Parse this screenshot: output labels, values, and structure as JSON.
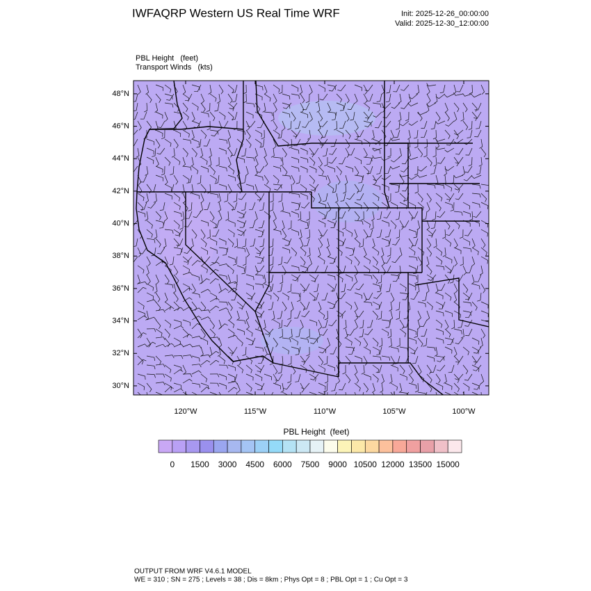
{
  "header": {
    "title": "IWFAQRP Western US Real Time WRF",
    "init": "Init: 2025-12-26_00:00:00",
    "valid": "Valid: 2025-12-30_12:00:00"
  },
  "map": {
    "field_label": "PBL Height   (feet)",
    "wind_label": "Transport Winds   (kts)",
    "xlim": [
      -123.75,
      -98.2
    ],
    "ylim": [
      29.44,
      48.81
    ],
    "xticks": [
      {
        "value": -120,
        "label": "120°W"
      },
      {
        "value": -115,
        "label": "115°W"
      },
      {
        "value": -110,
        "label": "110°W"
      },
      {
        "value": -105,
        "label": "105°W"
      },
      {
        "value": -100,
        "label": "100°W"
      }
    ],
    "yticks": [
      {
        "value": 48,
        "label": "48°N"
      },
      {
        "value": 46,
        "label": "46°N"
      },
      {
        "value": 44,
        "label": "44°N"
      },
      {
        "value": 42,
        "label": "42°N"
      },
      {
        "value": 40,
        "label": "40°N"
      },
      {
        "value": 38,
        "label": "38°N"
      },
      {
        "value": 36,
        "label": "36°N"
      },
      {
        "value": 34,
        "label": "34°N"
      },
      {
        "value": 32,
        "label": "32°N"
      },
      {
        "value": 30,
        "label": "30°N"
      }
    ]
  },
  "colorbar": {
    "title": "PBL Height  (feet)",
    "ticks": [
      0,
      1500,
      3000,
      4500,
      6000,
      7500,
      9000,
      10500,
      12000,
      13500,
      15000
    ],
    "colors": [
      "#c9a8f5",
      "#b9a0f5",
      "#a898f0",
      "#9a90ee",
      "#9aa6f0",
      "#a7b8f0",
      "#a4c4f4",
      "#9cd0f6",
      "#94daf8",
      "#b4e2f4",
      "#cce8f4",
      "#e6f2f6",
      "#fcfcec",
      "#fcf4b8",
      "#fce8a8",
      "#fcd8a0",
      "#fcc09c",
      "#f8a898",
      "#f0a0a0",
      "#e8a0a8",
      "#f0c0c8",
      "#fce8ec"
    ]
  },
  "footer": {
    "line1": "OUTPUT FROM WRF V4.6.1 MODEL",
    "line2": "WE = 310 ; SN = 275 ; Levels = 38 ; Dis = 8km ; Phys Opt = 8 ; PBL Opt = 1 ; Cu Opt = 3"
  }
}
